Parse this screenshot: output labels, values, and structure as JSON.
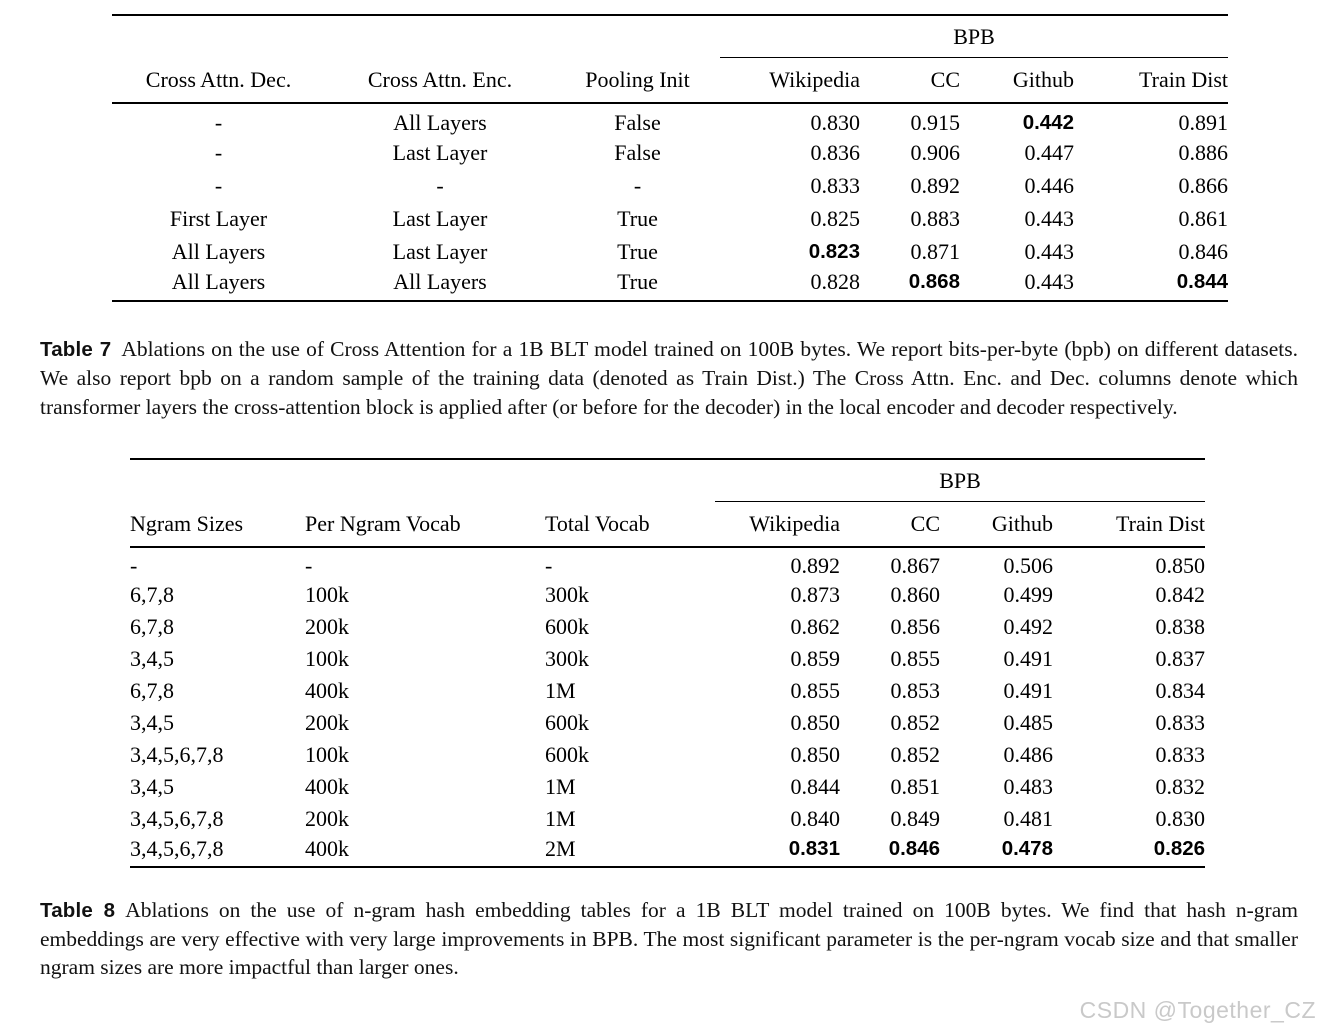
{
  "table7": {
    "group_label": "BPB",
    "group_span_start": 3,
    "columns": [
      "Cross Attn. Dec.",
      "Cross Attn. Enc.",
      "Pooling Init",
      "Wikipedia",
      "CC",
      "Github",
      "Train Dist"
    ],
    "rows": [
      {
        "cells": [
          "-",
          "All Layers",
          "False",
          "0.830",
          "0.915",
          "0.442",
          "0.891"
        ],
        "bold": [
          5
        ]
      },
      {
        "cells": [
          "-",
          "Last Layer",
          "False",
          "0.836",
          "0.906",
          "0.447",
          "0.886"
        ],
        "bold": []
      },
      {
        "cells": [
          "-",
          "-",
          "-",
          "0.833",
          "0.892",
          "0.446",
          "0.866"
        ],
        "bold": []
      },
      {
        "cells": [
          "First Layer",
          "Last Layer",
          "True",
          "0.825",
          "0.883",
          "0.443",
          "0.861"
        ],
        "bold": []
      },
      {
        "cells": [
          "All Layers",
          "Last Layer",
          "True",
          "0.823",
          "0.871",
          "0.443",
          "0.846"
        ],
        "bold": [
          3
        ]
      },
      {
        "cells": [
          "All Layers",
          "All Layers",
          "True",
          "0.828",
          "0.868",
          "0.443",
          "0.844"
        ],
        "bold": [
          4,
          6
        ]
      }
    ],
    "caption_label": "Table 7",
    "caption_text": "Ablations on the use of Cross Attention for a 1B BLT model trained on 100B bytes. We report bits-per-byte (bpb) on different datasets. We also report bpb on a random sample of the training data (denoted as Train Dist.) The Cross Attn. Enc. and Dec. columns denote which transformer layers the cross-attention block is applied after (or before for the decoder) in the local encoder and decoder respectively."
  },
  "table8": {
    "group_label": "BPB",
    "group_span_start": 3,
    "columns": [
      "Ngram Sizes",
      "Per Ngram Vocab",
      "Total Vocab",
      "Wikipedia",
      "CC",
      "Github",
      "Train Dist"
    ],
    "rows": [
      {
        "cells": [
          "-",
          "-",
          "-",
          "0.892",
          "0.867",
          "0.506",
          "0.850"
        ],
        "bold": []
      },
      {
        "cells": [
          "6,7,8",
          "100k",
          "300k",
          "0.873",
          "0.860",
          "0.499",
          "0.842"
        ],
        "bold": []
      },
      {
        "cells": [
          "6,7,8",
          "200k",
          "600k",
          "0.862",
          "0.856",
          "0.492",
          "0.838"
        ],
        "bold": []
      },
      {
        "cells": [
          "3,4,5",
          "100k",
          "300k",
          "0.859",
          "0.855",
          "0.491",
          "0.837"
        ],
        "bold": []
      },
      {
        "cells": [
          "6,7,8",
          "400k",
          "1M",
          "0.855",
          "0.853",
          "0.491",
          "0.834"
        ],
        "bold": []
      },
      {
        "cells": [
          "3,4,5",
          "200k",
          "600k",
          "0.850",
          "0.852",
          "0.485",
          "0.833"
        ],
        "bold": []
      },
      {
        "cells": [
          "3,4,5,6,7,8",
          "100k",
          "600k",
          "0.850",
          "0.852",
          "0.486",
          "0.833"
        ],
        "bold": []
      },
      {
        "cells": [
          "3,4,5",
          "400k",
          "1M",
          "0.844",
          "0.851",
          "0.483",
          "0.832"
        ],
        "bold": []
      },
      {
        "cells": [
          "3,4,5,6,7,8",
          "200k",
          "1M",
          "0.840",
          "0.849",
          "0.481",
          "0.830"
        ],
        "bold": []
      },
      {
        "cells": [
          "3,4,5,6,7,8",
          "400k",
          "2M",
          "0.831",
          "0.846",
          "0.478",
          "0.826"
        ],
        "bold": [
          3,
          4,
          5,
          6
        ]
      }
    ],
    "caption_label": "Table 8",
    "caption_text": "Ablations on the use of n-gram hash embedding tables for a 1B BLT model trained on 100B bytes. We find that hash n-gram embeddings are very effective with very large improvements in BPB. The most significant parameter is the per-ngram vocab size and that smaller ngram sizes are more impactful than larger ones."
  },
  "watermark": "CSDN @Together_CZ"
}
